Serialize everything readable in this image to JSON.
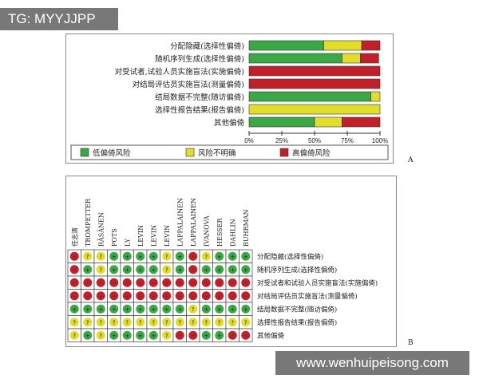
{
  "watermarks": {
    "top": "TG: MYYJJPP",
    "bottom": "www.wenhuipeisong.com"
  },
  "colors": {
    "low": "#3aa845",
    "unclear": "#e2dc2a",
    "high": "#c1202b"
  },
  "chart_data": [
    {
      "type": "bar",
      "orientation": "horizontal",
      "stacked": true,
      "panel_label": "A",
      "categories": [
        "分配隐藏(选择性偏倚)",
        "随机序列生成(选择性偏倚)",
        "对受试者,试验人员实施盲法(实施偏倚)",
        "对结局评估员实施盲法(测量偏倚)",
        "结局数据不完整(随访偏倚)",
        "选择性报告结果(报告偏倚)",
        "其他偏倚"
      ],
      "series": [
        {
          "name": "低偏倚风险",
          "values": [
            57,
            71,
            0,
            0,
            93,
            0,
            50
          ]
        },
        {
          "name": "风险不明确",
          "values": [
            29,
            14,
            0,
            0,
            7,
            100,
            21
          ]
        },
        {
          "name": "高偏倚风险",
          "values": [
            14,
            14,
            100,
            100,
            0,
            0,
            29
          ]
        }
      ],
      "xticks": [
        "0%",
        "25%",
        "50%",
        "75%",
        "100%"
      ],
      "xlim": [
        0,
        100
      ],
      "legend": "bottom"
    },
    {
      "type": "heatmap",
      "panel_label": "B",
      "columns": [
        "任志清",
        "TROMPETTER",
        "RÄSÄNEN",
        "POTS",
        "LY",
        "LEVIN",
        "LEVIN",
        "LEVIN",
        "LAPPALAINEN",
        "LAPPALAINEN",
        "IVANOVA",
        "HESSER",
        "DAHLIN",
        "BUHRMAN"
      ],
      "rows": [
        "分配隐藏(选择性偏倚)",
        "随机序列生成(选择性偏倚)",
        "对受试者和试验人员实施盲法(实施偏倚)",
        "对结局评估员实施盲法(测量偏倚)",
        "结局数据不完整(随访偏倚)",
        "选择性报告结果(报告偏倚)",
        "其他偏倚"
      ],
      "symbols": {
        "low": "+",
        "unclear": "?",
        "high": "-"
      },
      "values": [
        "RYYGGGGYGRYGGG",
        "RGYGGGGYGRGGGG",
        "RRRRRRRRRRRRRR",
        "RRRRRRRRRRRRRR",
        "GGGGGGGGGYGGGG",
        "YYYYYYYYYYYYYY",
        "YGYGGGGYRRGGRR"
      ]
    }
  ]
}
